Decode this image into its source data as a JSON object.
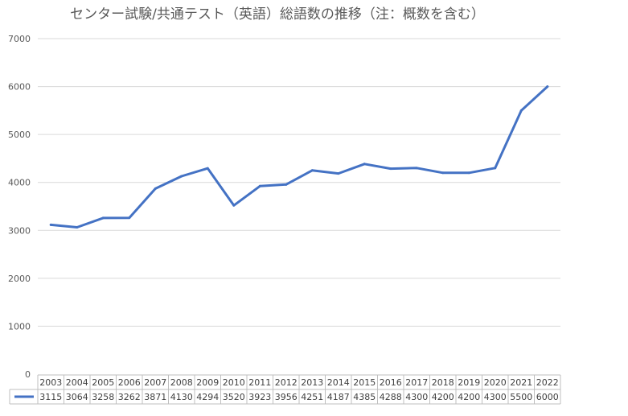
{
  "chart_data": {
    "type": "line",
    "title": "センター試験/共通テスト（英語）総語数の推移（注：概数を含む）",
    "xlabel": "",
    "ylabel": "",
    "ylim": [
      0,
      7000
    ],
    "yticks": [
      "0",
      "1000",
      "2000",
      "3000",
      "4000",
      "5000",
      "6000",
      "7000"
    ],
    "grid": true,
    "data_table": true,
    "categories": [
      "2003",
      "2004",
      "2005",
      "2006",
      "2007",
      "2008",
      "2009",
      "2010",
      "2011",
      "2012",
      "2013",
      "2014",
      "2015",
      "2016",
      "2017",
      "2018",
      "2019",
      "2020",
      "2021",
      "2022"
    ],
    "series": [
      {
        "color": "#4472C4",
        "values": [
          3115,
          3064,
          3258,
          3262,
          3871,
          4130,
          4294,
          3520,
          3923,
          3956,
          4251,
          4187,
          4385,
          4288,
          4300,
          4200,
          4200,
          4300,
          5500,
          6000
        ]
      }
    ]
  }
}
